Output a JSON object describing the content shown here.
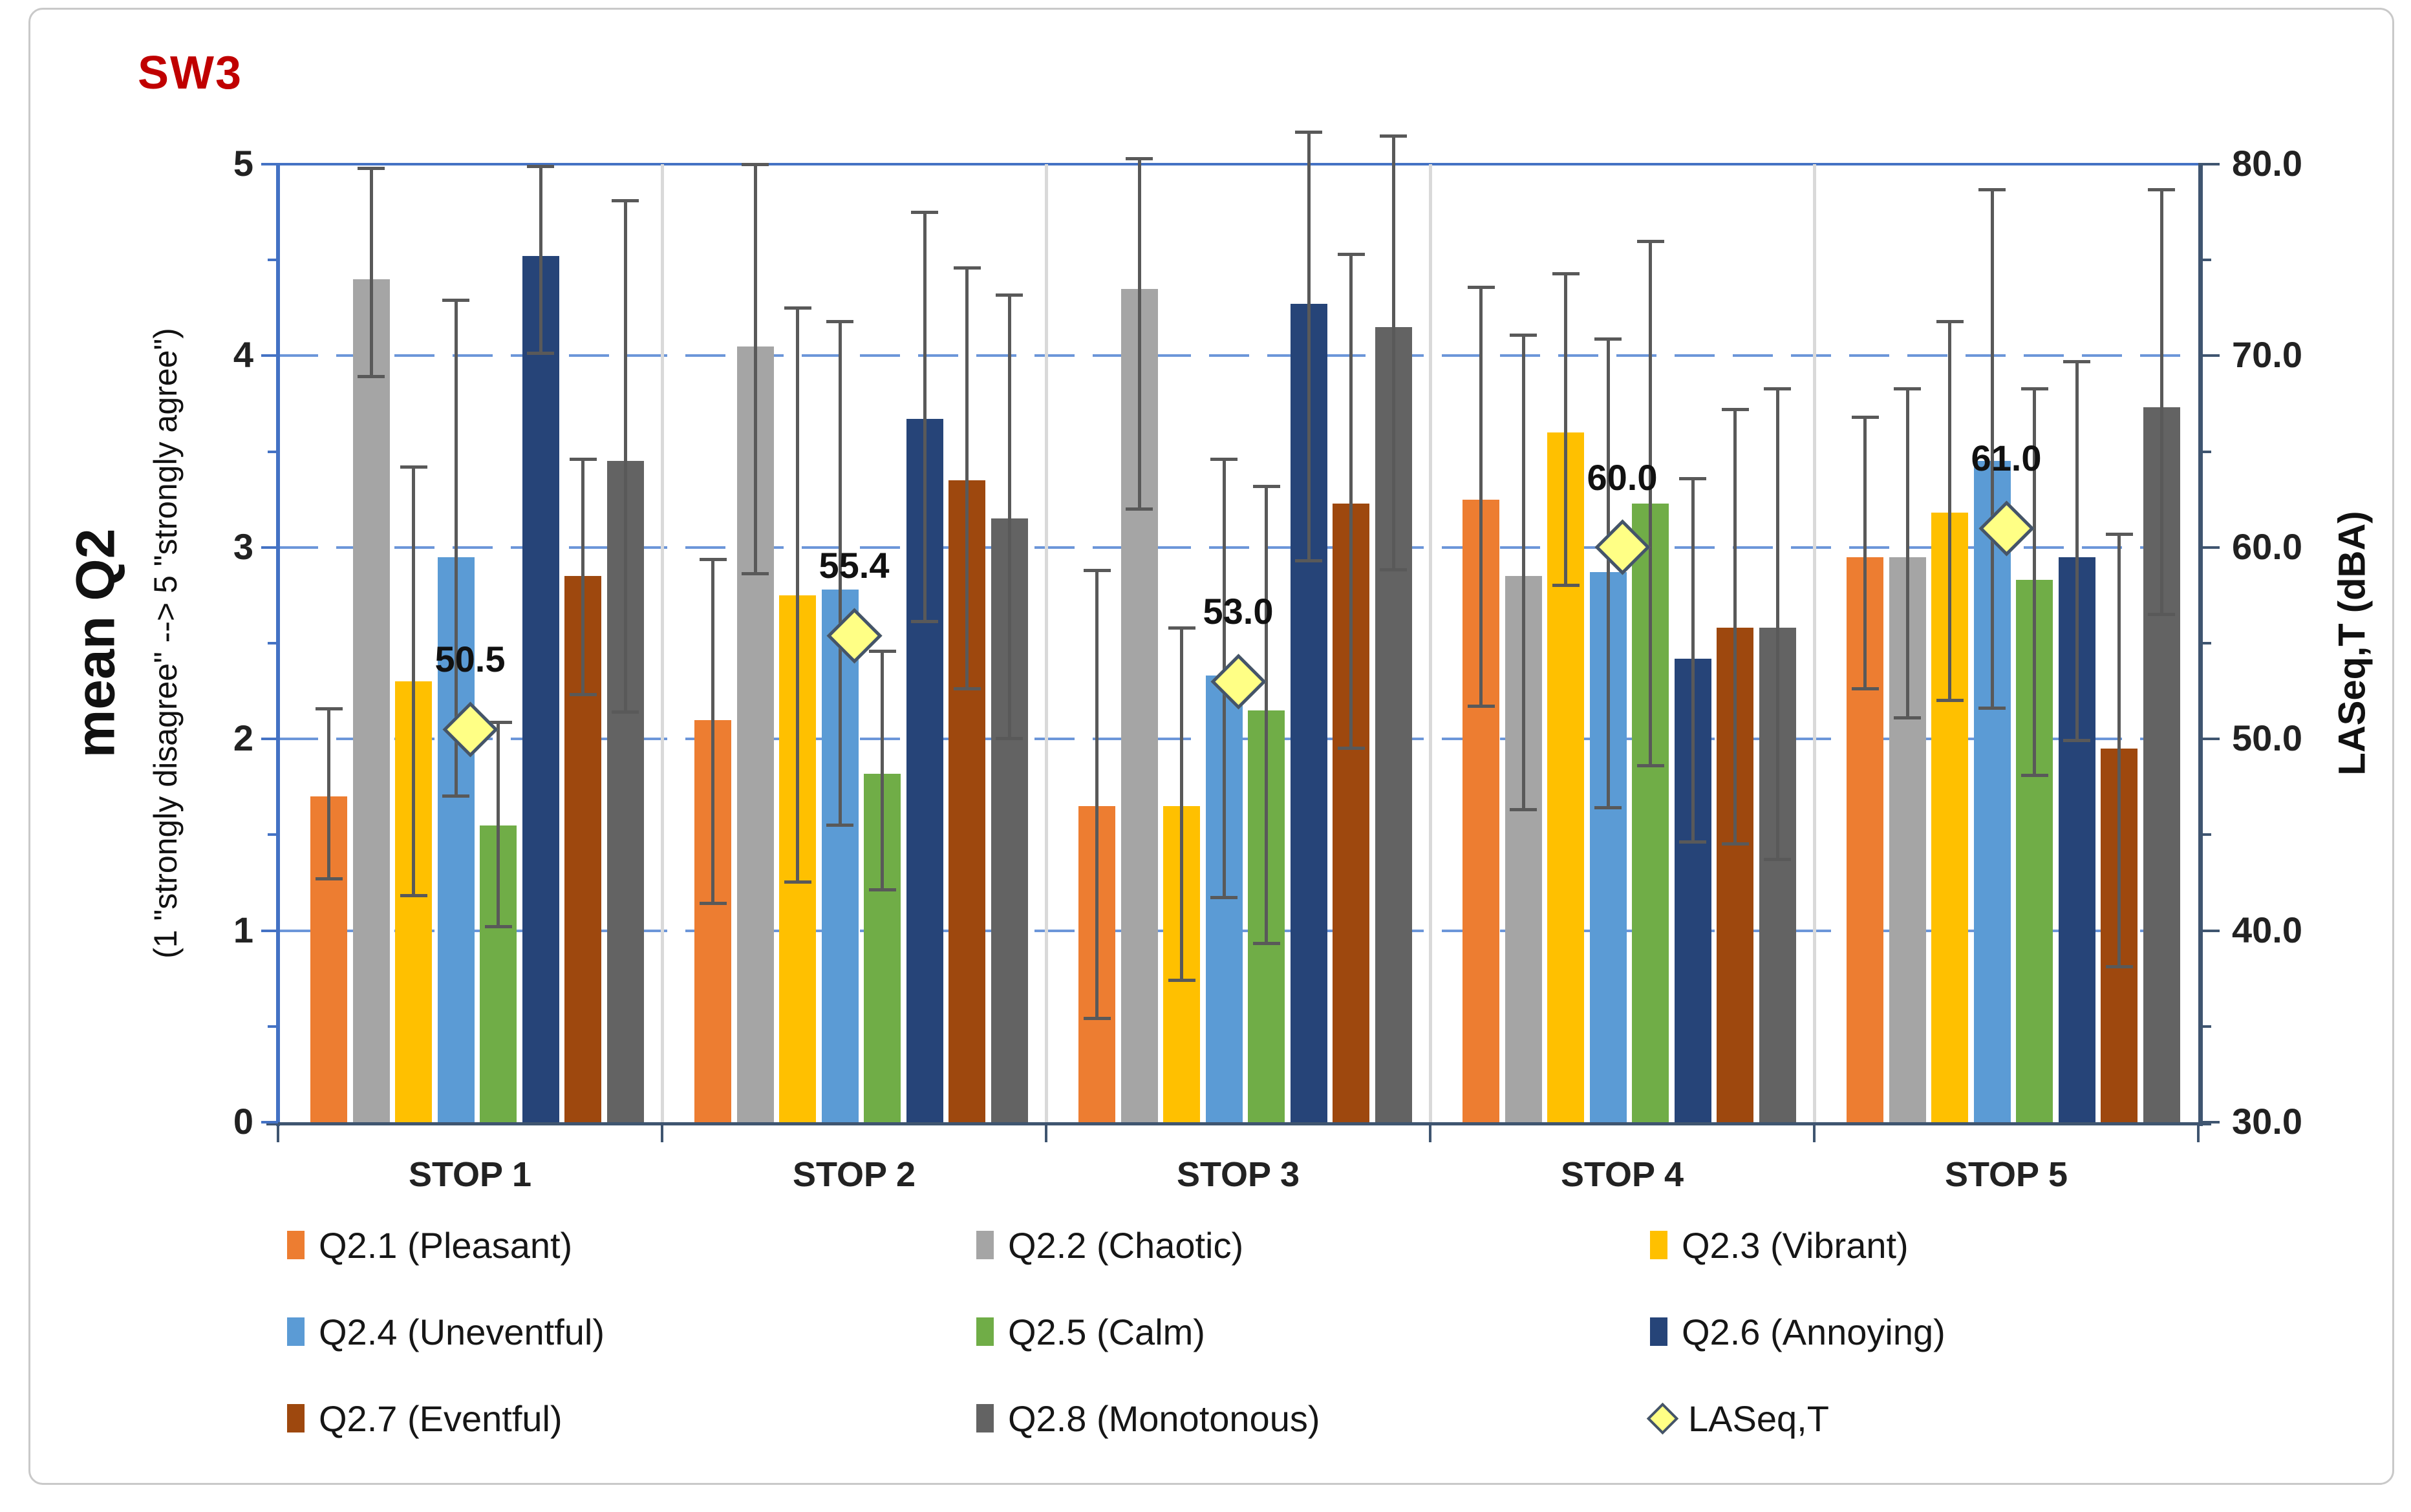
{
  "title": "SW3",
  "chart_data": {
    "type": "bar",
    "title": "SW3",
    "title_color": "#c00000",
    "categories": [
      "STOP 1",
      "STOP 2",
      "STOP 3",
      "STOP 4",
      "STOP 5"
    ],
    "left_axis": {
      "label_main": "mean Q2",
      "label_sub": "(1 \"strongly disagree\" --> 5 \"strongly agree\")",
      "min": 0,
      "max": 5,
      "ticks": [
        "0",
        "1",
        "2",
        "3",
        "4",
        "5"
      ],
      "minor_step": 0.5,
      "grid": "dashed horizontal blue lines at 1,2,3,4; solid at 5"
    },
    "right_axis": {
      "label": "LASeq,T (dBA)",
      "min": 30,
      "max": 80,
      "ticks": [
        "30.0",
        "40.0",
        "50.0",
        "60.0",
        "70.0",
        "80.0"
      ],
      "minor_step": 5
    },
    "legend_position": "bottom, 3 columns x 3 rows",
    "series": [
      {
        "name": "Q2.1 (Pleasant)",
        "color": "#ED7D31",
        "values": [
          1.7,
          2.1,
          1.65,
          3.25,
          2.95
        ],
        "err_up": [
          0.46,
          0.84,
          1.23,
          1.11,
          0.73
        ],
        "err_down": [
          0.43,
          0.96,
          1.11,
          1.08,
          0.69
        ]
      },
      {
        "name": "Q2.2 (Chaotic)",
        "color": "#A5A5A5",
        "values": [
          4.4,
          4.05,
          4.35,
          2.85,
          2.95
        ],
        "err_up": [
          0.58,
          0.95,
          0.68,
          1.26,
          0.88
        ],
        "err_down": [
          0.51,
          1.19,
          1.15,
          1.22,
          0.84
        ]
      },
      {
        "name": "Q2.3 (Vibrant)",
        "color": "#FFC000",
        "values": [
          2.3,
          2.75,
          1.65,
          3.6,
          3.18
        ],
        "err_up": [
          1.12,
          1.5,
          0.93,
          0.83,
          1.0
        ],
        "err_down": [
          1.12,
          1.5,
          0.91,
          0.8,
          0.98
        ]
      },
      {
        "name": "Q2.4 (Uneventful)",
        "color": "#5B9BD5",
        "values": [
          2.95,
          2.78,
          2.33,
          2.87,
          3.45
        ],
        "err_up": [
          1.34,
          1.4,
          1.13,
          1.22,
          1.42
        ],
        "err_down": [
          1.25,
          1.23,
          1.16,
          1.23,
          1.29
        ]
      },
      {
        "name": "Q2.5 (Calm)",
        "color": "#70AD47",
        "values": [
          1.55,
          1.82,
          2.15,
          3.23,
          2.83
        ],
        "err_up": [
          0.54,
          0.64,
          1.17,
          1.37,
          1.0
        ],
        "err_down": [
          0.53,
          0.61,
          1.22,
          1.37,
          1.02
        ]
      },
      {
        "name": "Q2.6 (Annoying)",
        "color": "#264478",
        "values": [
          4.52,
          3.67,
          4.27,
          2.42,
          2.95
        ],
        "err_up": [
          0.47,
          1.08,
          0.9,
          0.94,
          1.02
        ],
        "err_down": [
          0.51,
          1.06,
          1.34,
          0.96,
          0.96
        ]
      },
      {
        "name": "Q2.7 (Eventful)",
        "color": "#9E480E",
        "values": [
          2.85,
          3.35,
          3.23,
          2.58,
          1.95
        ],
        "err_up": [
          0.61,
          1.11,
          1.3,
          1.14,
          1.12
        ],
        "err_down": [
          0.62,
          1.09,
          1.28,
          1.13,
          1.14
        ]
      },
      {
        "name": "Q2.8 (Monotonous)",
        "color": "#636363",
        "values": [
          3.45,
          3.15,
          4.15,
          2.58,
          3.73
        ],
        "err_up": [
          1.36,
          1.17,
          1.0,
          1.25,
          1.14
        ],
        "err_down": [
          1.31,
          1.15,
          1.27,
          1.21,
          1.08
        ]
      }
    ],
    "laseq": {
      "name": "LASeq,T",
      "axis": "right",
      "marker": "diamond",
      "fill": "#FFFF85",
      "stroke": "#44546A",
      "values": [
        50.5,
        55.4,
        53.0,
        60.0,
        61.0
      ],
      "labels": [
        "50.5",
        "55.4",
        "53.0",
        "60.0",
        "61.0"
      ]
    },
    "error_bar_color": "#595959",
    "gridline_color": "#6C96D9",
    "left_axis_color": "#4472C4",
    "right_axis_color": "#3F5570"
  }
}
